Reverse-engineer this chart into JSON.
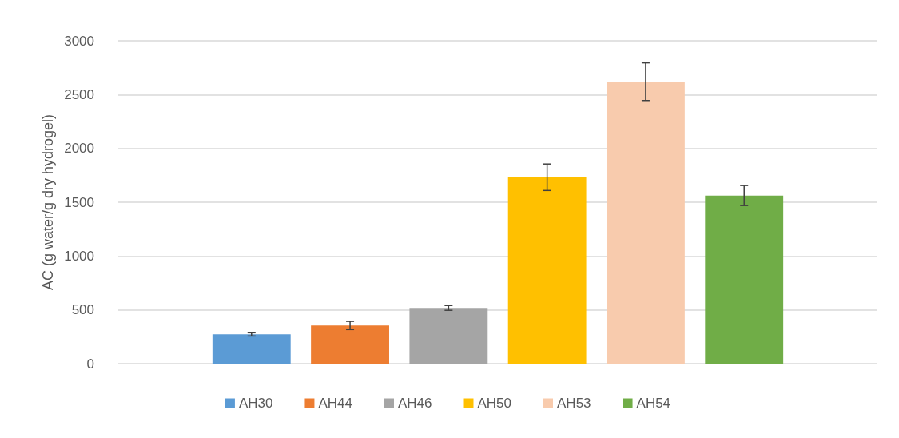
{
  "chart_data": {
    "type": "bar",
    "ylabel": "AC (g water/g dry hydrogel)",
    "categories": [
      null
    ],
    "series": [
      {
        "name": "AH30",
        "color": "#5b9bd5",
        "values": [
          272
        ],
        "errors": [
          15
        ]
      },
      {
        "name": "AH44",
        "color": "#ed7d31",
        "values": [
          355
        ],
        "errors": [
          38
        ]
      },
      {
        "name": "AH46",
        "color": "#a5a5a5",
        "values": [
          518
        ],
        "errors": [
          22
        ]
      },
      {
        "name": "AH50",
        "color": "#ffc000",
        "values": [
          1732
        ],
        "errors": [
          123
        ]
      },
      {
        "name": "AH53",
        "color": "#f8cbad",
        "values": [
          2620
        ],
        "errors": [
          175
        ]
      },
      {
        "name": "AH54",
        "color": "#70ad47",
        "values": [
          1562
        ],
        "errors": [
          93
        ]
      }
    ],
    "ylim": [
      0,
      3000
    ],
    "yticks": [
      0,
      500,
      1000,
      1500,
      2000,
      2500,
      3000
    ],
    "grid": "y",
    "legend": "bottom"
  }
}
